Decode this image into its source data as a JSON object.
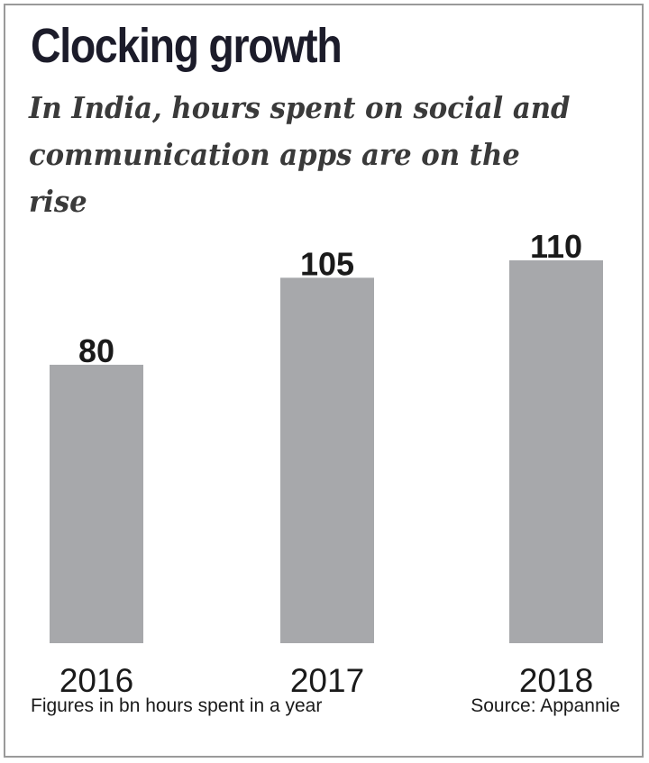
{
  "chart_data": {
    "type": "bar",
    "title": "Clocking growth",
    "subtitle": "In India, hours spent on social and communication apps are on the rise",
    "categories": [
      "2016",
      "2017",
      "2018"
    ],
    "values": [
      80,
      105,
      110
    ],
    "value_labels": [
      "80",
      "105",
      "110"
    ],
    "xlabel": "",
    "ylabel": "",
    "ylim": [
      0,
      110
    ],
    "grid": false,
    "bar_color": "#a7a8ab",
    "footnote": "Figures in bn hours spent in a year",
    "source": "Source: Appannie"
  }
}
